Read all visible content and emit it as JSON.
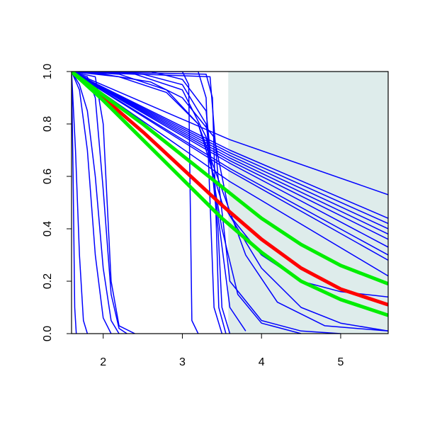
{
  "chart_data": {
    "type": "line",
    "xlim": [
      1.6,
      5.6
    ],
    "ylim": [
      0,
      1
    ],
    "xticks": [
      2,
      3,
      4,
      5
    ],
    "yticks": [
      {
        "value": 0,
        "label": "0.0"
      },
      0.2,
      0.4,
      0.6,
      0.8,
      {
        "value": 1,
        "label": "1.0"
      }
    ],
    "shaded_xrange": [
      3.58,
      5.6
    ],
    "shade_color": "#deeceb",
    "series": [
      {
        "color": "#0000ff",
        "linewidth": 1.5,
        "x": [
          1.6,
          1.62,
          1.64,
          1.66
        ],
        "values": [
          1,
          0.6,
          0.1,
          0
        ]
      },
      {
        "color": "#0000ff",
        "linewidth": 1.5,
        "x": [
          1.6,
          1.65,
          1.7,
          1.75,
          1.8
        ],
        "values": [
          1,
          0.7,
          0.3,
          0.05,
          0
        ]
      },
      {
        "color": "#0000ff",
        "linewidth": 1.5,
        "x": [
          1.6,
          1.7,
          1.8,
          1.9,
          2.0,
          2.1
        ],
        "values": [
          1,
          0.93,
          0.7,
          0.3,
          0.06,
          0
        ]
      },
      {
        "color": "#0000ff",
        "linewidth": 1.5,
        "x": [
          1.6,
          1.7,
          1.8,
          1.9,
          2.0,
          2.1,
          2.2
        ],
        "values": [
          1,
          0.95,
          0.85,
          0.6,
          0.25,
          0.05,
          0
        ]
      },
      {
        "color": "#0000ff",
        "linewidth": 1.5,
        "x": [
          1.6,
          1.8,
          1.9,
          2.0,
          2.1,
          2.2,
          2.3
        ],
        "values": [
          1,
          0.98,
          0.9,
          0.55,
          0.15,
          0.02,
          0
        ]
      },
      {
        "color": "#0000ff",
        "linewidth": 1.5,
        "x": [
          1.6,
          1.9,
          2.0,
          2.05,
          2.1,
          2.2,
          2.4
        ],
        "values": [
          1,
          0.98,
          0.8,
          0.5,
          0.2,
          0.03,
          0
        ]
      },
      {
        "color": "#0000ff",
        "linewidth": 1.5,
        "x": [
          1.6,
          3.0,
          3.08,
          3.1,
          3.12,
          3.2
        ],
        "values": [
          1,
          1,
          0.95,
          0.5,
          0.05,
          0
        ]
      },
      {
        "color": "#0000ff",
        "linewidth": 1.5,
        "x": [
          1.6,
          3.2,
          3.3,
          3.35,
          3.4,
          3.5
        ],
        "values": [
          1,
          1,
          0.9,
          0.5,
          0.1,
          0
        ]
      },
      {
        "color": "#0000ff",
        "linewidth": 1.5,
        "x": [
          1.6,
          3.3,
          3.38,
          3.42,
          3.46,
          3.55
        ],
        "values": [
          1,
          0.99,
          0.9,
          0.5,
          0.1,
          0
        ]
      },
      {
        "color": "#0000ff",
        "linewidth": 1.5,
        "x": [
          1.6,
          2.6,
          3.0,
          3.3,
          3.45,
          3.5,
          3.6
        ],
        "values": [
          1,
          1,
          0.97,
          0.85,
          0.4,
          0.1,
          0
        ]
      },
      {
        "color": "#0000ff",
        "linewidth": 1.5,
        "x": [
          1.6,
          2.5,
          3.0,
          3.3,
          3.45,
          3.6,
          3.8
        ],
        "values": [
          1,
          0.99,
          0.95,
          0.8,
          0.45,
          0.1,
          0.01
        ]
      },
      {
        "color": "#0000ff",
        "linewidth": 1.5,
        "x": [
          1.6,
          2.4,
          3.0,
          3.3,
          3.5,
          3.7,
          4.0,
          4.5
        ],
        "values": [
          1,
          0.99,
          0.93,
          0.75,
          0.4,
          0.15,
          0.04,
          0
        ]
      },
      {
        "color": "#0000ff",
        "linewidth": 1.5,
        "x": [
          1.6,
          2.2,
          2.8,
          3.2,
          3.5,
          3.8,
          4.2,
          4.8,
          5.6
        ],
        "values": [
          1,
          0.99,
          0.93,
          0.8,
          0.55,
          0.3,
          0.12,
          0.03,
          0.01
        ]
      },
      {
        "color": "#0000ff",
        "linewidth": 1.5,
        "x": [
          1.6,
          2.2,
          2.8,
          3.2,
          3.5,
          4.0,
          4.5,
          5.0,
          5.6
        ],
        "values": [
          1,
          0.98,
          0.92,
          0.8,
          0.5,
          0.25,
          0.1,
          0.04,
          0.01
        ]
      },
      {
        "color": "#0000ff",
        "linewidth": 1.5,
        "x": [
          1.6,
          2.0,
          2.6,
          3.0,
          3.4,
          3.6,
          4.0,
          4.5,
          5.0,
          5.6
        ],
        "values": [
          1,
          0.99,
          0.96,
          0.9,
          0.75,
          0.45,
          0.3,
          0.2,
          0.16,
          0.14
        ]
      },
      {
        "color": "#0000ff",
        "linewidth": 1.5,
        "x": [
          1.6,
          3.35,
          3.45,
          3.6,
          4.0,
          4.5,
          5.0
        ],
        "values": [
          1,
          0.98,
          0.6,
          0.2,
          0.05,
          0.01,
          0
        ]
      },
      {
        "color": "#0000ff",
        "linewidth": 1.5,
        "x": [
          1.6,
          3.6,
          5.6
        ],
        "values": [
          1,
          0.74,
          0.53
        ]
      },
      {
        "color": "#0000ff",
        "linewidth": 1.5,
        "x": [
          1.6,
          3.6,
          5.6
        ],
        "values": [
          1,
          0.7,
          0.44
        ]
      },
      {
        "color": "#0000ff",
        "linewidth": 1.5,
        "x": [
          1.6,
          3.6,
          5.6
        ],
        "values": [
          1,
          0.69,
          0.42
        ]
      },
      {
        "color": "#0000ff",
        "linewidth": 1.5,
        "x": [
          1.6,
          3.6,
          5.6
        ],
        "values": [
          1,
          0.68,
          0.4
        ]
      },
      {
        "color": "#0000ff",
        "linewidth": 1.5,
        "x": [
          1.6,
          3.6,
          5.6
        ],
        "values": [
          1,
          0.67,
          0.38
        ]
      },
      {
        "color": "#0000ff",
        "linewidth": 1.5,
        "x": [
          1.6,
          3.6,
          5.6
        ],
        "values": [
          1,
          0.66,
          0.36
        ]
      },
      {
        "color": "#0000ff",
        "linewidth": 1.5,
        "x": [
          1.6,
          3.6,
          5.6
        ],
        "values": [
          1,
          0.65,
          0.33
        ]
      },
      {
        "color": "#0000ff",
        "linewidth": 1.5,
        "x": [
          1.6,
          3.6,
          5.6
        ],
        "values": [
          1,
          0.63,
          0.3
        ]
      },
      {
        "color": "#0000ff",
        "linewidth": 1.5,
        "x": [
          1.6,
          3.6,
          5.6
        ],
        "values": [
          1,
          0.62,
          0.28
        ]
      },
      {
        "color": "#0000ff",
        "linewidth": 1.5,
        "x": [
          1.6,
          3.6,
          5.6
        ],
        "values": [
          1,
          0.58,
          0.22
        ]
      },
      {
        "color": "#ff0000",
        "linewidth": 5,
        "x": [
          1.6,
          2.0,
          2.5,
          3.0,
          3.5,
          4.0,
          4.5,
          5.0,
          5.6
        ],
        "values": [
          1,
          0.9,
          0.77,
          0.63,
          0.49,
          0.36,
          0.25,
          0.17,
          0.11
        ]
      },
      {
        "color": "#00ee00",
        "linewidth": 5,
        "x": [
          1.6,
          2.0,
          2.5,
          3.0,
          3.5,
          4.0,
          4.5,
          5.0,
          5.6
        ],
        "values": [
          1,
          0.91,
          0.8,
          0.68,
          0.56,
          0.44,
          0.34,
          0.26,
          0.19
        ]
      },
      {
        "color": "#00ee00",
        "linewidth": 5,
        "x": [
          1.6,
          2.0,
          2.5,
          3.0,
          3.5,
          4.0,
          4.5,
          5.0,
          5.6
        ],
        "values": [
          1,
          0.89,
          0.74,
          0.59,
          0.44,
          0.31,
          0.2,
          0.13,
          0.07
        ]
      }
    ]
  }
}
